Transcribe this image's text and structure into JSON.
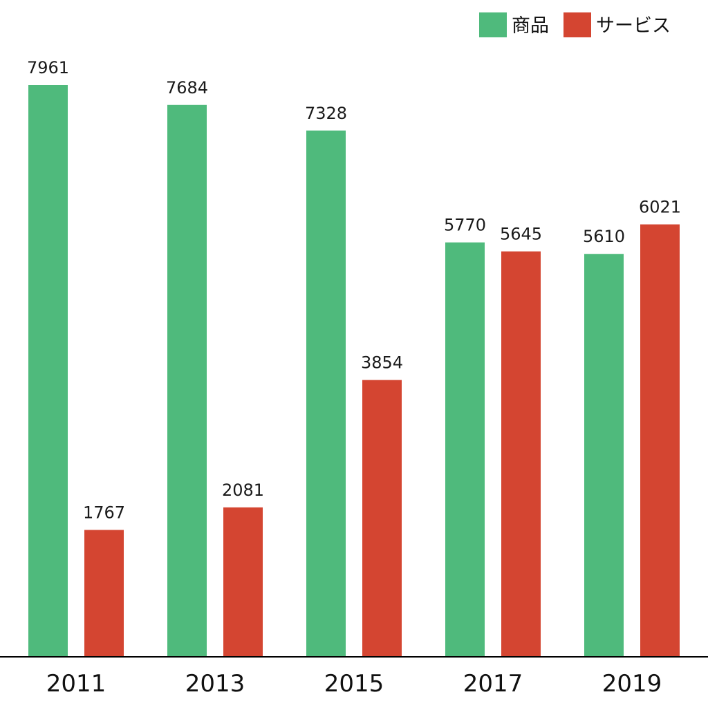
{
  "chart_data": {
    "type": "bar",
    "title": "",
    "xlabel": "",
    "ylabel": "",
    "categories": [
      "2011",
      "2013",
      "2015",
      "2017",
      "2019"
    ],
    "series": [
      {
        "name": "商品",
        "color": "#4fba7c",
        "values": [
          7961,
          7684,
          7328,
          5770,
          5610
        ]
      },
      {
        "name": "サービス",
        "color": "#d44531",
        "values": [
          1767,
          2081,
          3854,
          5645,
          6021
        ]
      }
    ],
    "ylim": [
      0,
      7961
    ],
    "grid": false,
    "legend_position": "top-right",
    "axis_color": "#000000"
  }
}
